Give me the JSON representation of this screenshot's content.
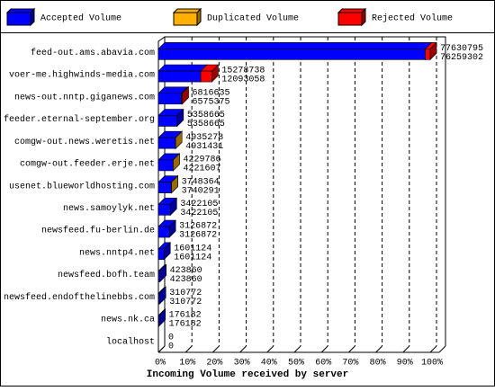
{
  "chart_data": {
    "type": "bar3d",
    "xlabel": "Incoming Volume received by server",
    "categories": [
      "feed-out.ams.abavia.com",
      "voer-me.highwinds-media.com",
      "news-out.nntp.giganews.com",
      "feeder.eternal-september.org",
      "comgw-out.news.weretis.net",
      "comgw-out.feeder.erje.net",
      "usenet.blueworldhosting.com",
      "news.samoylyk.net",
      "newsfeed.fu-berlin.de",
      "news.nntp4.net",
      "newsfeed.bofh.team",
      "newsfeed.endofthelinebbs.com",
      "news.nk.ca",
      "localhost"
    ],
    "totals": [
      77630795,
      15278738,
      6816635,
      5358665,
      4935278,
      4229786,
      3748364,
      3422105,
      3126872,
      1601124,
      423860,
      310772,
      176182,
      0
    ],
    "series": [
      {
        "name": "Accepted Volume",
        "color": "#0000ff",
        "values": [
          76259302,
          12093058,
          6575375,
          5358665,
          4931431,
          4221607,
          3740291,
          3422105,
          3126872,
          1601124,
          423860,
          310772,
          176182,
          0
        ]
      },
      {
        "name": "Duplicated Volume",
        "color": "#ffb000",
        "values": [
          0,
          0,
          0,
          0,
          3847,
          8179,
          8073,
          0,
          0,
          0,
          0,
          0,
          0,
          0
        ]
      },
      {
        "name": "Rejected Volume",
        "color": "#ff0000",
        "values": [
          1371493,
          3185680,
          241260,
          0,
          0,
          0,
          0,
          0,
          0,
          0,
          0,
          0,
          0,
          0
        ]
      }
    ],
    "xlim": [
      0,
      100
    ],
    "xticks": [
      {
        "value": 0,
        "label": "0%"
      },
      {
        "value": 10,
        "label": "10%"
      },
      {
        "value": 20,
        "label": "20%"
      },
      {
        "value": 30,
        "label": "30%"
      },
      {
        "value": 40,
        "label": "40%"
      },
      {
        "value": 50,
        "label": "50%"
      },
      {
        "value": 60,
        "label": "60%"
      },
      {
        "value": 70,
        "label": "70%"
      },
      {
        "value": 80,
        "label": "80%"
      },
      {
        "value": 90,
        "label": "90%"
      },
      {
        "value": 100,
        "label": "100%"
      }
    ],
    "grid": true
  }
}
